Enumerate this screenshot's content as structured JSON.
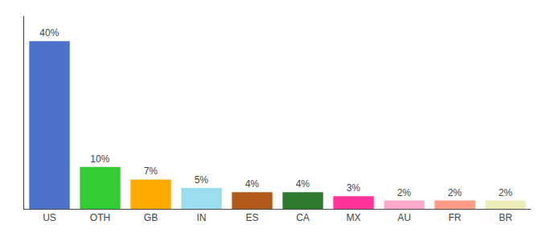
{
  "chart_data": {
    "type": "bar",
    "categories": [
      "US",
      "OTH",
      "GB",
      "IN",
      "ES",
      "CA",
      "MX",
      "AU",
      "FR",
      "BR"
    ],
    "values": [
      40,
      10,
      7,
      5,
      4,
      4,
      3,
      2,
      2,
      2
    ],
    "value_labels": [
      "40%",
      "10%",
      "7%",
      "5%",
      "4%",
      "4%",
      "3%",
      "2%",
      "2%",
      "2%"
    ],
    "colors": [
      "#4d72cc",
      "#33cc33",
      "#ffaa00",
      "#99ddee",
      "#b05a1a",
      "#2d7a2d",
      "#ff3399",
      "#ffaacc",
      "#ff9988",
      "#eeeebb"
    ],
    "data_labels": true,
    "ylim": [
      0,
      46
    ],
    "yticks": [],
    "tick_labels": "x",
    "grid": false
  }
}
